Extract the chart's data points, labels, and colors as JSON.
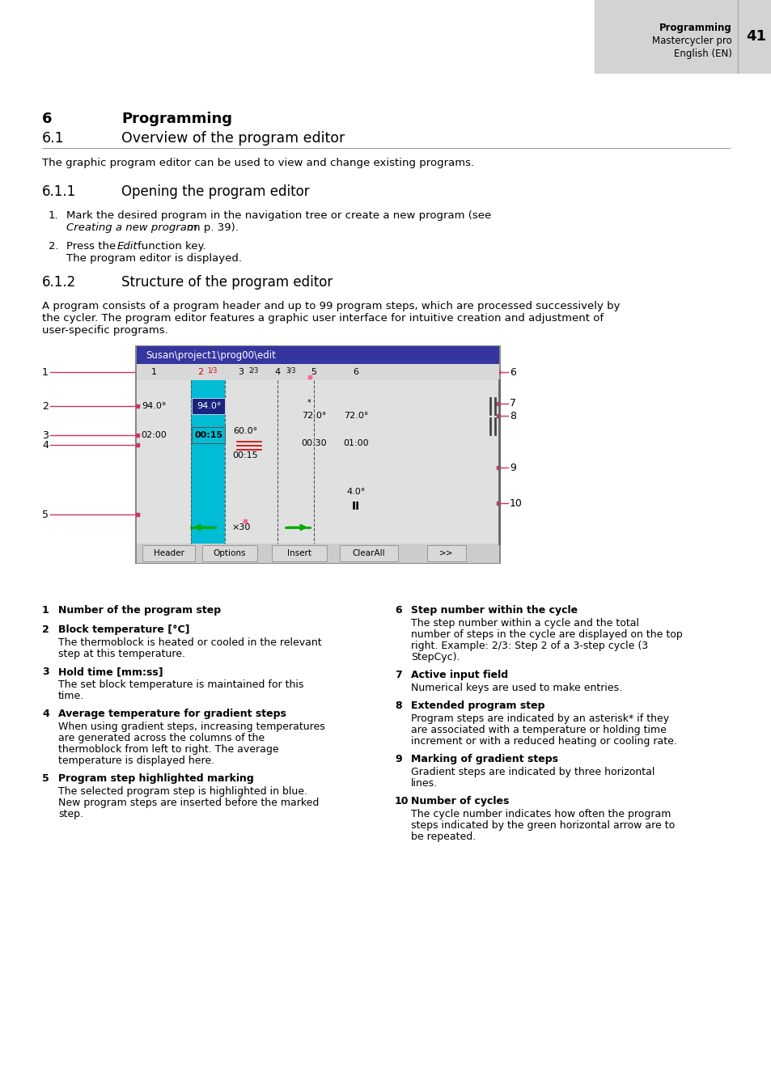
{
  "page_bg": "#ffffff",
  "header_bg": "#d3d3d3",
  "header_bold_text": "Programming",
  "header_normal_text1": "Mastercycler pro",
  "header_normal_text2": "English (EN)",
  "header_page_num": "41",
  "section6_label": "6",
  "section6_title": "Programming",
  "section61_label": "6.1",
  "section61_title": "Overview of the program editor",
  "intro_text": "The graphic program editor can be used to view and change existing programs.",
  "section611_label": "6.1.1",
  "section611_title": "Opening the program editor",
  "section612_label": "6.1.2",
  "section612_title": "Structure of the program editor",
  "body_text1": "A program consists of a program header and up to 99 program steps, which are processed successively by",
  "body_text2": "the cycler. The program editor features a graphic user interface for intuitive creation and adjustment of",
  "body_text3": "user-specific programs.",
  "legend_items": [
    {
      "num": "1",
      "bold": "Number of the program step",
      "text": ""
    },
    {
      "num": "2",
      "bold": "Block temperature [°C]",
      "text": "The thermoblock is heated or cooled in the relevant\nstep at this temperature."
    },
    {
      "num": "3",
      "bold": "Hold time [mm:ss]",
      "text": "The set block temperature is maintained for this\ntime."
    },
    {
      "num": "4",
      "bold": "Average temperature for gradient steps",
      "text": "When using gradient steps, increasing temperatures\nare generated across the columns of the\nthermoblock from left to right. The average\ntemperature is displayed here."
    },
    {
      "num": "5",
      "bold": "Program step highlighted marking",
      "text": "The selected program step is highlighted in blue.\nNew program steps are inserted before the marked\nstep."
    },
    {
      "num": "6",
      "bold": "Step number within the cycle",
      "text": "The step number within a cycle and the total\nnumber of steps in the cycle are displayed on the top\nright. Example: 2/3: Step 2 of a 3-step cycle (3\nStepCyc)."
    },
    {
      "num": "7",
      "bold": "Active input field",
      "text": "Numerical keys are used to make entries."
    },
    {
      "num": "8",
      "bold": "Extended program step",
      "text": "Program steps are indicated by an asterisk* if they\nare associated with a temperature or holding time\nincrement or with a reduced heating or cooling rate."
    },
    {
      "num": "9",
      "bold": "Marking of gradient steps",
      "text": "Gradient steps are indicated by three horizontal\nlines."
    },
    {
      "num": "10",
      "bold": "Number of cycles",
      "text": "The cycle number indicates how often the program\nsteps indicated by the green horizontal arrow are to\nbe repeated."
    }
  ]
}
